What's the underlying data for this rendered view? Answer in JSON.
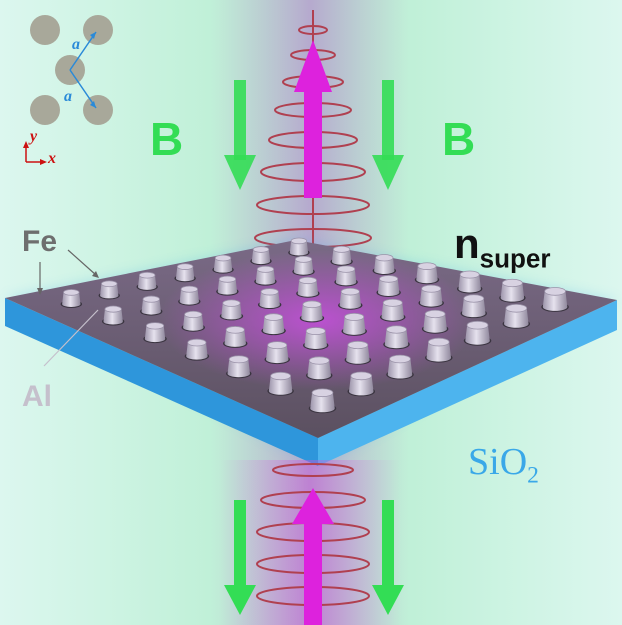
{
  "labels": {
    "b_left": "B",
    "b_right": "B",
    "n_main": "n",
    "n_sub": "super",
    "fe": "Fe",
    "al": "Al",
    "sio2_main": "SiO",
    "sio2_sub": "2",
    "lattice_a_top": "a",
    "lattice_a_bottom": "a",
    "axis_y": "y",
    "axis_x": "x"
  },
  "colors": {
    "field_green": "#33dd55",
    "beam_magenta": "#dd22dd",
    "helix_red": "#b04050",
    "substrate_blue": "#3aa8e8",
    "fe_gray": "#6e6e6e",
    "al_gray": "#b9b4c4",
    "axis_red": "#cc1111",
    "lattice_blue": "#2a8ad8"
  },
  "icons": {
    "field_arrows": "down-arrow",
    "beam_arrows": "up-arrow"
  }
}
